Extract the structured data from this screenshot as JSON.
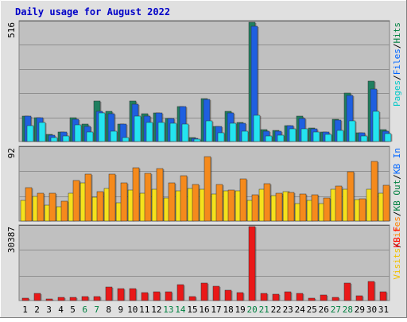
{
  "chart_data": {
    "type": "bar",
    "title": "Daily usage for August 2022",
    "days": [
      "1",
      "2",
      "3",
      "4",
      "5",
      "6",
      "7",
      "8",
      "9",
      "10",
      "11",
      "12",
      "13",
      "14",
      "15",
      "16",
      "17",
      "18",
      "19",
      "20",
      "21",
      "22",
      "23",
      "24",
      "25",
      "26",
      "27",
      "28",
      "29",
      "30",
      "31"
    ],
    "weekend_days": [
      "6",
      "7",
      "13",
      "14",
      "20",
      "21",
      "27",
      "28"
    ],
    "panels": [
      {
        "id": "hits",
        "max_label": "516",
        "ylim": [
          0,
          516
        ],
        "series": [
          {
            "name": "Hits",
            "color": "#1f7f5f",
            "values": [
              110,
              104,
              30,
              42,
              104,
              77,
              175,
              129,
              77,
              174,
              120,
              124,
              101,
              152,
              16,
              187,
              67,
              129,
              84,
              516,
              53,
              49,
              70,
              111,
              59,
              41,
              97,
              209,
              39,
              263,
              50
            ]
          },
          {
            "name": "Files",
            "color": "#1e5fe0",
            "values": [
              110,
              104,
              27,
              40,
              96,
              66,
              131,
              120,
              76,
              162,
              109,
              124,
              101,
              152,
              14,
              181,
              64,
              125,
              80,
              499,
              46,
              45,
              70,
              100,
              56,
              41,
              94,
              199,
              37,
              228,
              45
            ]
          },
          {
            "name": "Pages",
            "color": "#24e4f0",
            "values": [
              70,
              83,
              17,
              23,
              72,
              40,
              124,
              44,
              16,
              111,
              84,
              82,
              80,
              75,
              11,
              88,
              39,
              78,
              45,
              114,
              24,
              29,
              56,
              55,
              42,
              30,
              49,
              88,
              24,
              129,
              34
            ]
          }
        ],
        "labels": [
          "Pages",
          "Files",
          "Hits"
        ]
      },
      {
        "id": "sites",
        "max_label": "92",
        "ylim": [
          0,
          92
        ],
        "series": [
          {
            "name": "Visits",
            "color": "#f5e11c",
            "values": [
              26,
              31,
              20,
              18,
              35,
              48,
              30,
              41,
              23,
              39,
              35,
              40,
              29,
              38,
              41,
              40,
              34,
              38,
              38,
              26,
              40,
              32,
              37,
              22,
              26,
              22,
              40,
              40,
              27,
              40,
              35
            ]
          },
          {
            "name": "Sites",
            "color": "#f58a1c",
            "values": [
              42,
              35,
              35,
              25,
              51,
              59,
              37,
              59,
              48,
              67,
              60,
              66,
              48,
              57,
              46,
              81,
              46,
              39,
              53,
              33,
              47,
              35,
              36,
              34,
              33,
              29,
              44,
              62,
              28,
              75,
              45
            ]
          }
        ],
        "labels": [
          "Visits",
          "Sites",
          "KB Out",
          "KB In"
        ]
      },
      {
        "id": "kbf",
        "max_label": "30387",
        "ylim": [
          0,
          30387
        ],
        "series": [
          {
            "name": "KB F",
            "color": "#ea1818",
            "values": [
              960,
              2880,
              720,
              1150,
              1380,
              1700,
              1700,
              5500,
              4800,
              4800,
              3400,
              3600,
              3600,
              6400,
              1500,
              7200,
              6000,
              4100,
              3300,
              30387,
              2800,
              2700,
              3500,
              2800,
              960,
              2400,
              1360,
              7200,
              1870,
              7800,
              3650
            ]
          }
        ],
        "labels": [
          "KB F"
        ]
      }
    ],
    "label_colors": {
      "Pages": "#00c8c8",
      "Files": "#0066ff",
      "Hits": "#008040",
      "Visits": "#f0c000",
      "Sites": "#ff8000",
      "KB Out": "#008040",
      "KB In": "#0066ff",
      "KB F": "#ff0000"
    },
    "separator": "/",
    "colors": {
      "title": "#0000c8",
      "plot_bg": "#c0c0c0",
      "outer_bg": "#e0e0e0",
      "weekday_label": "#000000",
      "weekend_label": "#008040"
    }
  }
}
